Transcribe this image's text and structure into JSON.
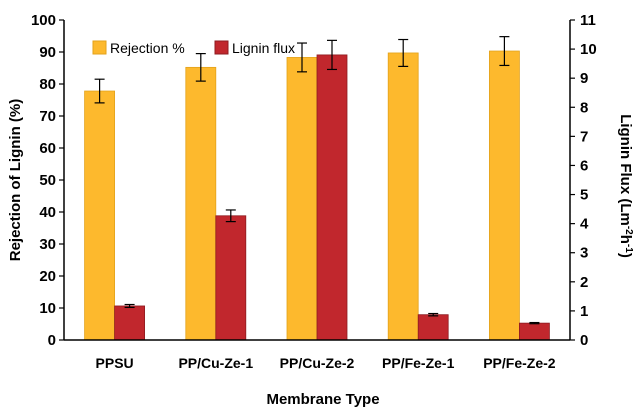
{
  "chart_data": {
    "type": "bar",
    "categories": [
      "PPSU",
      "PP/Cu-Ze-1",
      "PP/Cu-Ze-2",
      "PP/Fe-Ze-1",
      "PP/Fe-Ze-2"
    ],
    "series": [
      {
        "name": "Rejection %",
        "axis": "left",
        "color": "#FDB92D",
        "values": [
          77.8,
          85.2,
          88.3,
          89.7,
          90.3
        ],
        "errors": [
          3.7,
          4.3,
          4.5,
          4.2,
          4.5
        ]
      },
      {
        "name": "Lignin flux",
        "axis": "right",
        "color": "#C1272D",
        "values": [
          1.17,
          4.27,
          9.8,
          0.87,
          0.58
        ],
        "errors": [
          0.05,
          0.2,
          0.5,
          0.04,
          0.02
        ]
      }
    ],
    "xlabel": "Membrane Type",
    "ylabel": "Rejection of Lignin (%)",
    "y2label_main": "Lignin Flux (Lm",
    "y2label_sup1": "-2",
    "y2label_mid": "h",
    "y2label_sup2": "-1",
    "y2label_end": ")",
    "ylim": [
      0,
      100
    ],
    "yticks": [
      0,
      10,
      20,
      30,
      40,
      50,
      60,
      70,
      80,
      90,
      100
    ],
    "y2lim": [
      0,
      11
    ],
    "y2ticks": [
      0,
      1,
      2,
      3,
      4,
      5,
      6,
      7,
      8,
      9,
      10,
      11
    ],
    "legend_position": "top-left",
    "grid": false
  }
}
